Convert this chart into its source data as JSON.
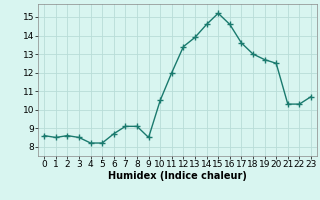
{
  "x": [
    0,
    1,
    2,
    3,
    4,
    5,
    6,
    7,
    8,
    9,
    10,
    11,
    12,
    13,
    14,
    15,
    16,
    17,
    18,
    19,
    20,
    21,
    22,
    23
  ],
  "y": [
    8.6,
    8.5,
    8.6,
    8.5,
    8.2,
    8.2,
    8.7,
    9.1,
    9.1,
    8.5,
    10.5,
    12.0,
    13.4,
    13.9,
    14.6,
    15.2,
    14.6,
    13.6,
    13.0,
    12.7,
    12.5,
    10.3,
    10.3,
    10.7
  ],
  "line_color": "#1a7a6e",
  "marker": "+",
  "marker_size": 4,
  "background_color": "#d8f5f0",
  "grid_color": "#b8ddd8",
  "xlabel": "Humidex (Indice chaleur)",
  "xlim": [
    -0.5,
    23.5
  ],
  "ylim": [
    7.5,
    15.7
  ],
  "xticks": [
    0,
    1,
    2,
    3,
    4,
    5,
    6,
    7,
    8,
    9,
    10,
    11,
    12,
    13,
    14,
    15,
    16,
    17,
    18,
    19,
    20,
    21,
    22,
    23
  ],
  "yticks": [
    8,
    9,
    10,
    11,
    12,
    13,
    14,
    15
  ],
  "xlabel_fontsize": 7,
  "tick_fontsize": 6.5,
  "line_width": 1.0
}
